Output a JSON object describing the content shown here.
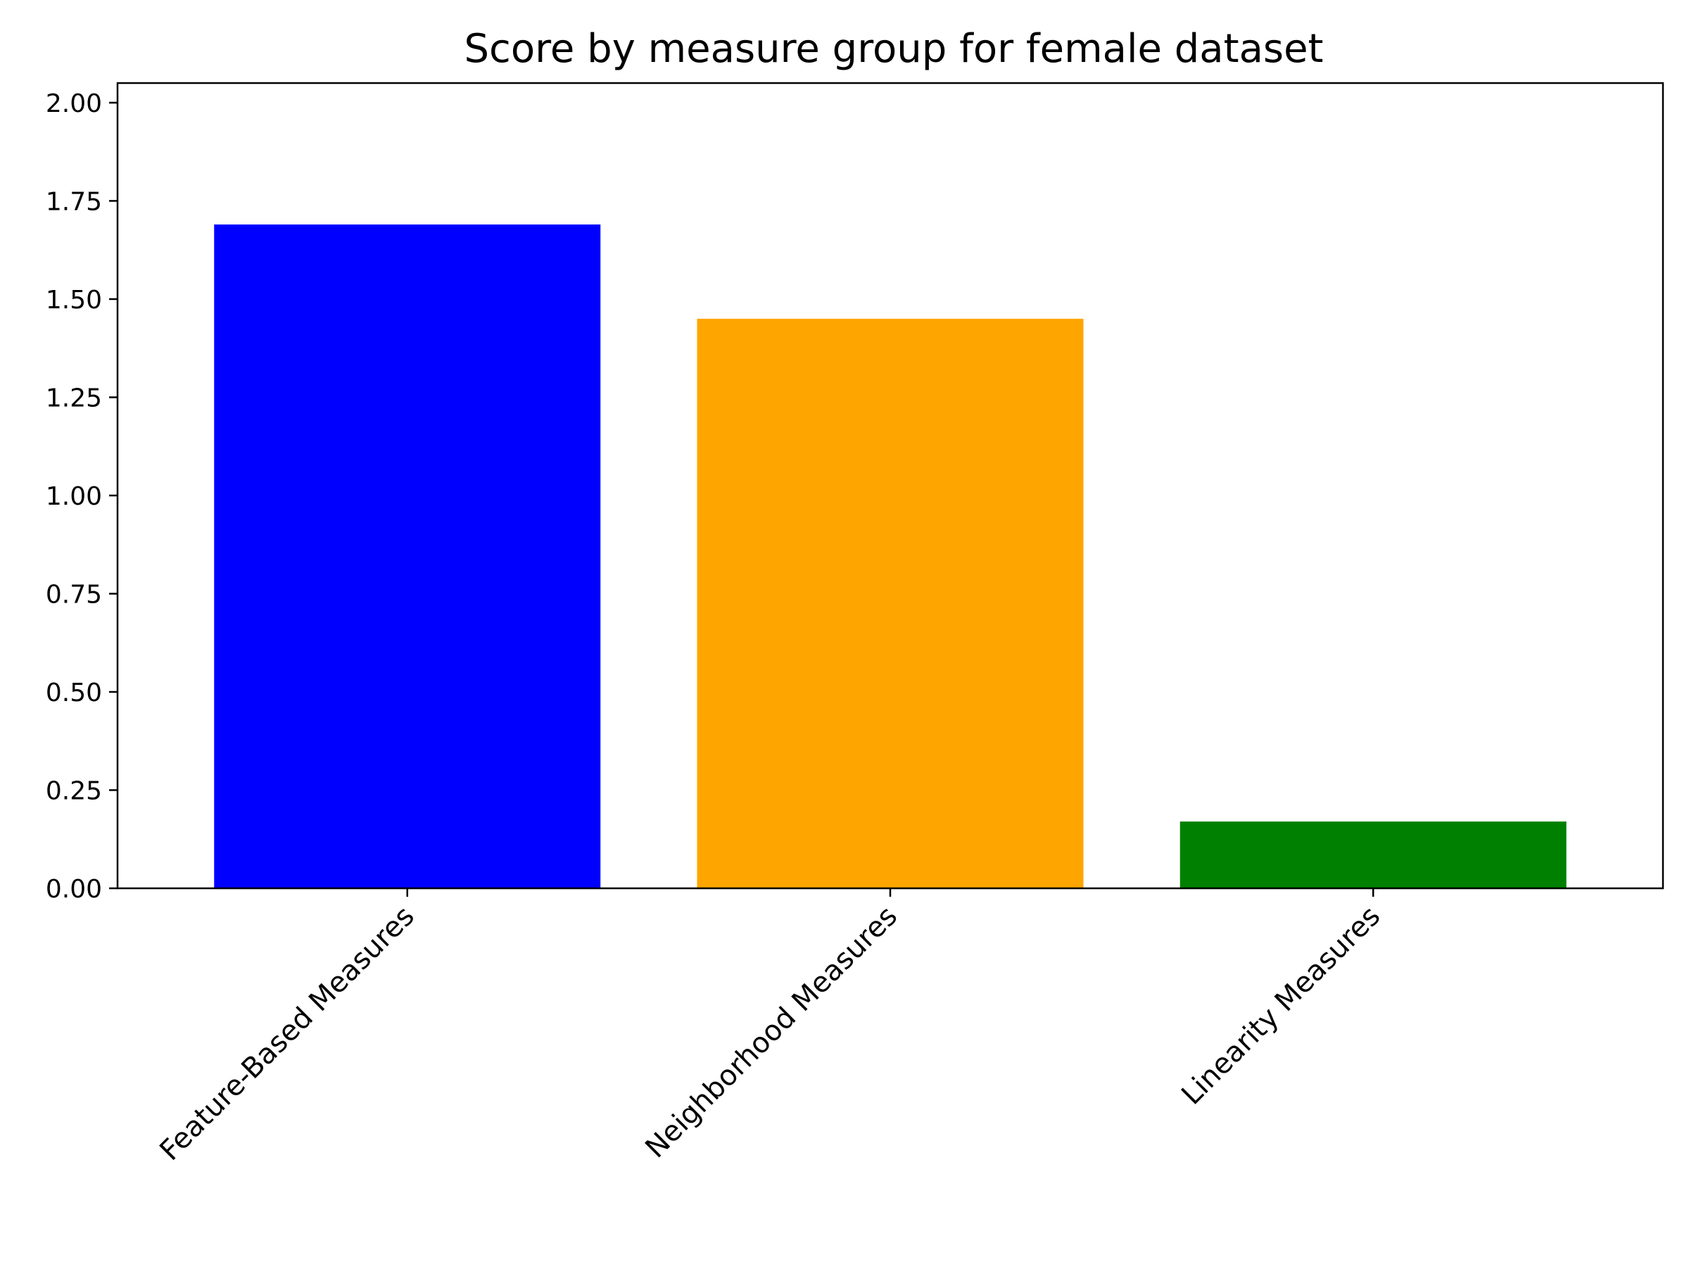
{
  "chart_data": {
    "type": "bar",
    "title": "Score by measure group for female dataset",
    "xlabel": "",
    "ylabel": "",
    "categories": [
      "Feature-Based Measures",
      "Neighborhood Measures",
      "Linearity Measures"
    ],
    "values": [
      1.69,
      1.45,
      0.17
    ],
    "colors": [
      "#0000ff",
      "#ffa500",
      "#008000"
    ],
    "ylim": [
      0,
      2.05
    ],
    "yticks": [
      0.0,
      0.25,
      0.5,
      0.75,
      1.0,
      1.25,
      1.5,
      1.75,
      2.0
    ],
    "ytick_labels": [
      "0.00",
      "0.25",
      "0.50",
      "0.75",
      "1.00",
      "1.25",
      "1.50",
      "1.75",
      "2.00"
    ],
    "xtick_rotation_deg": 45,
    "grid": false,
    "legend": "none"
  }
}
